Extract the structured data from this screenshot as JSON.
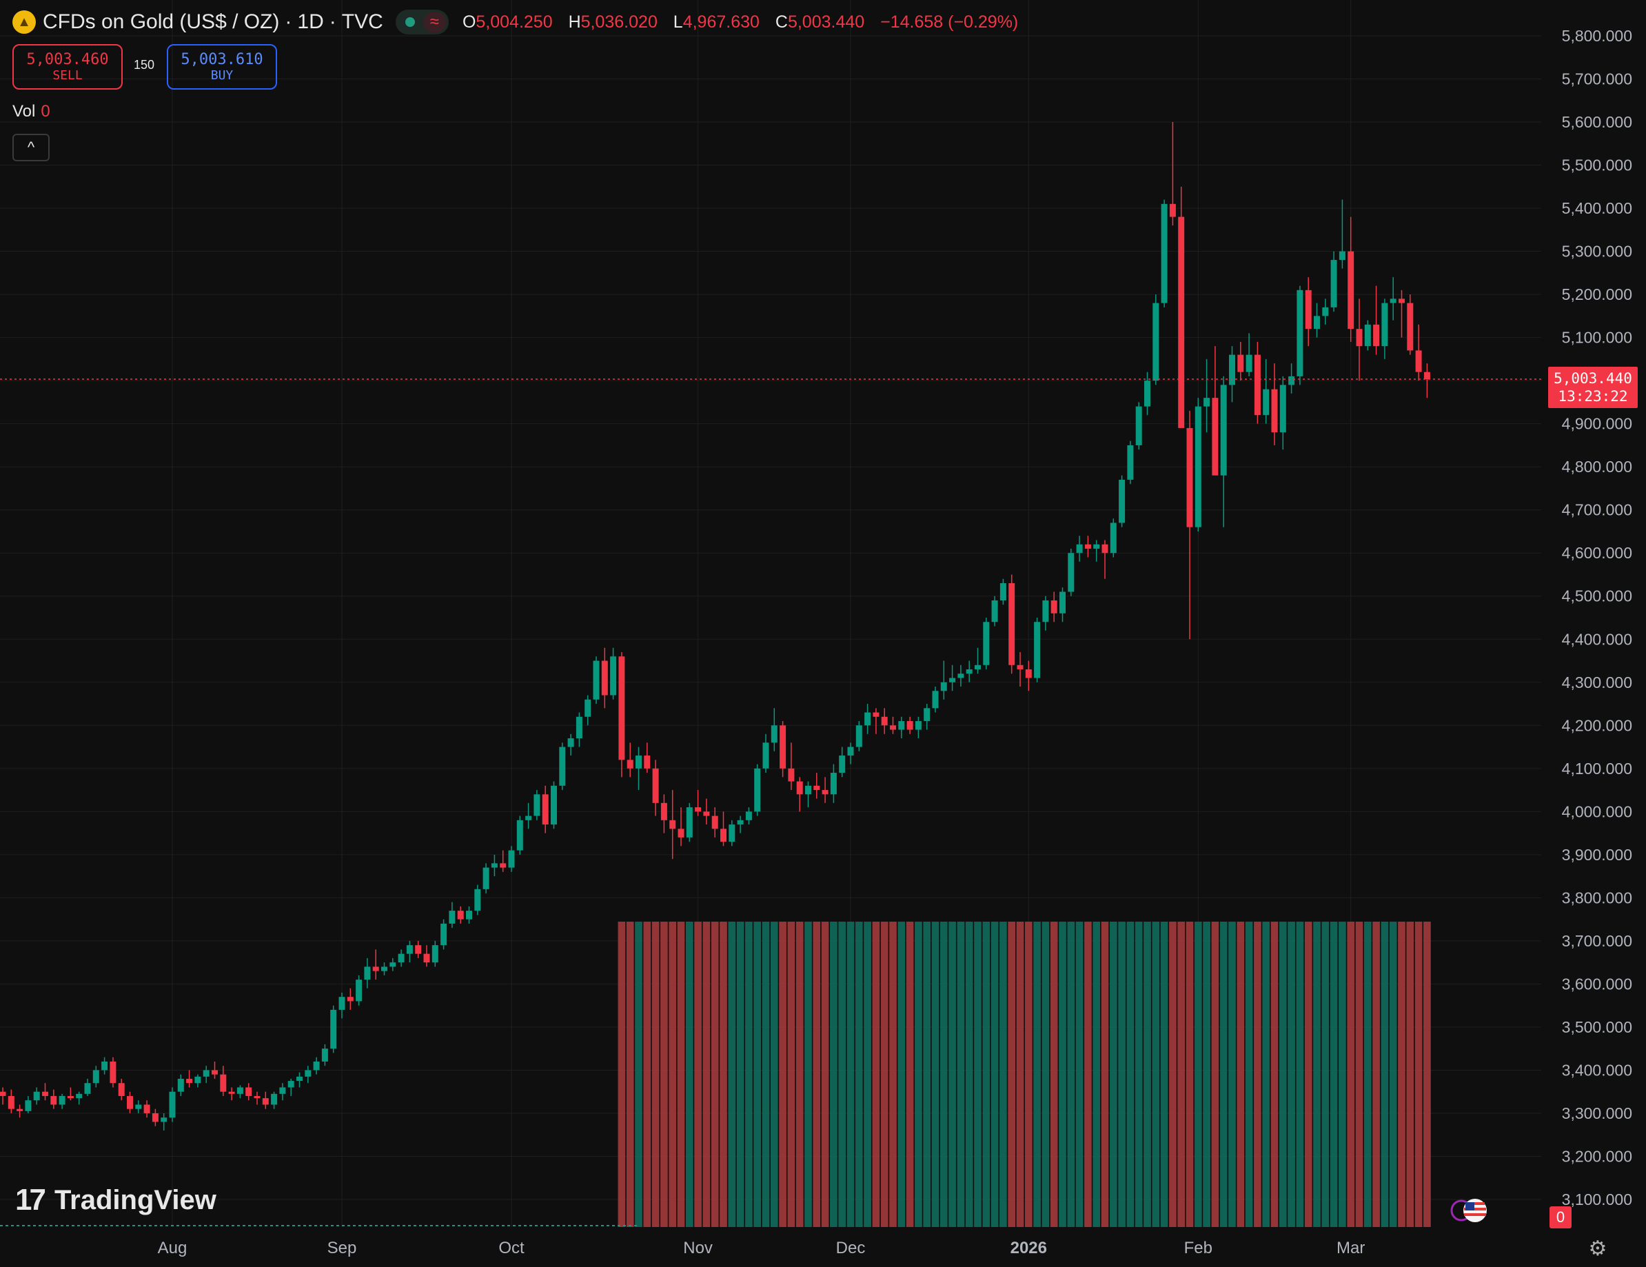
{
  "header": {
    "title": "CFDs on Gold (US$ / OZ)",
    "interval": "1D",
    "exchange": "TVC",
    "separator": "·",
    "logo_icon": "gold-coin-icon",
    "status_wave": "≈",
    "ohlc": {
      "o_label": "O",
      "o_value": "5,004.250",
      "h_label": "H",
      "h_value": "5,036.020",
      "l_label": "L",
      "l_value": "4,967.630",
      "c_label": "C",
      "c_value": "5,003.440",
      "change": "−14.658 (−0.29%)"
    }
  },
  "trade": {
    "sell_price": "5,003.460",
    "sell_label": "SELL",
    "spread": "150",
    "buy_price": "5,003.610",
    "buy_label": "BUY"
  },
  "volume": {
    "label": "Vol",
    "value": "0"
  },
  "controls": {
    "collapse_icon": "^",
    "settings_icon": "gear-icon"
  },
  "branding": {
    "logo_mark": "17",
    "logo_text": "TradingView"
  },
  "price_tag": {
    "price": "5,003.440",
    "countdown": "13:23:22"
  },
  "badge_zero": "0",
  "colors": {
    "up": "#089981",
    "down": "#f23645",
    "background": "#0f0f0f",
    "grid": "#1f1f1f",
    "text": "#b2b5be"
  },
  "chart_data": {
    "type": "candlestick",
    "title": "CFDs on Gold (US$ / OZ) · 1D · TVC",
    "ylim": [
      3000,
      5900
    ],
    "y_ticks": [
      "5,800.000",
      "5,700.000",
      "5,600.000",
      "5,500.000",
      "5,400.000",
      "5,300.000",
      "5,200.000",
      "5,100.000",
      "4,900.000",
      "4,800.000",
      "4,700.000",
      "4,600.000",
      "4,500.000",
      "4,400.000",
      "4,300.000",
      "4,200.000",
      "4,100.000",
      "4,000.000",
      "3,900.000",
      "3,800.000",
      "3,700.000",
      "3,600.000",
      "3,500.000",
      "3,400.000",
      "3,300.000",
      "3,200.000",
      "3,100.000"
    ],
    "y_tick_values": [
      5800,
      5700,
      5600,
      5500,
      5400,
      5300,
      5200,
      5100,
      4900,
      4800,
      4700,
      4600,
      4500,
      4400,
      4300,
      4200,
      4100,
      4000,
      3900,
      3800,
      3700,
      3600,
      3500,
      3400,
      3300,
      3200,
      3100
    ],
    "x_labels": [
      {
        "label": "Aug",
        "index": 20
      },
      {
        "label": "Sep",
        "index": 40
      },
      {
        "label": "Oct",
        "index": 60
      },
      {
        "label": "Nov",
        "index": 82
      },
      {
        "label": "Dec",
        "index": 100
      },
      {
        "label": "2026",
        "index": 121
      },
      {
        "label": "Feb",
        "index": 141
      },
      {
        "label": "Mar",
        "index": 159
      }
    ],
    "last_price": 5003.44,
    "volume_bars_start_index": 73,
    "candles": [
      [
        3350,
        3360,
        3320,
        3340
      ],
      [
        3340,
        3355,
        3300,
        3310
      ],
      [
        3310,
        3320,
        3290,
        3305
      ],
      [
        3305,
        3340,
        3300,
        3330
      ],
      [
        3330,
        3360,
        3320,
        3350
      ],
      [
        3350,
        3370,
        3330,
        3340
      ],
      [
        3340,
        3355,
        3310,
        3320
      ],
      [
        3320,
        3345,
        3310,
        3340
      ],
      [
        3340,
        3360,
        3330,
        3335
      ],
      [
        3335,
        3350,
        3320,
        3345
      ],
      [
        3345,
        3380,
        3340,
        3370
      ],
      [
        3370,
        3410,
        3360,
        3400
      ],
      [
        3400,
        3430,
        3390,
        3420
      ],
      [
        3420,
        3430,
        3360,
        3370
      ],
      [
        3370,
        3380,
        3330,
        3340
      ],
      [
        3340,
        3350,
        3300,
        3310
      ],
      [
        3310,
        3330,
        3300,
        3320
      ],
      [
        3320,
        3330,
        3290,
        3300
      ],
      [
        3300,
        3310,
        3270,
        3280
      ],
      [
        3280,
        3300,
        3260,
        3290
      ],
      [
        3290,
        3360,
        3280,
        3350
      ],
      [
        3350,
        3390,
        3340,
        3380
      ],
      [
        3380,
        3400,
        3360,
        3370
      ],
      [
        3370,
        3390,
        3360,
        3385
      ],
      [
        3385,
        3410,
        3370,
        3400
      ],
      [
        3400,
        3420,
        3380,
        3390
      ],
      [
        3390,
        3410,
        3340,
        3350
      ],
      [
        3350,
        3360,
        3330,
        3345
      ],
      [
        3345,
        3365,
        3335,
        3360
      ],
      [
        3360,
        3370,
        3330,
        3340
      ],
      [
        3340,
        3350,
        3320,
        3335
      ],
      [
        3335,
        3350,
        3310,
        3320
      ],
      [
        3320,
        3350,
        3310,
        3345
      ],
      [
        3345,
        3370,
        3330,
        3360
      ],
      [
        3360,
        3380,
        3340,
        3375
      ],
      [
        3375,
        3395,
        3360,
        3385
      ],
      [
        3385,
        3410,
        3370,
        3400
      ],
      [
        3400,
        3430,
        3390,
        3420
      ],
      [
        3420,
        3460,
        3410,
        3450
      ],
      [
        3450,
        3550,
        3440,
        3540
      ],
      [
        3540,
        3580,
        3520,
        3570
      ],
      [
        3570,
        3590,
        3540,
        3560
      ],
      [
        3560,
        3620,
        3550,
        3610
      ],
      [
        3610,
        3660,
        3590,
        3640
      ],
      [
        3640,
        3680,
        3610,
        3630
      ],
      [
        3630,
        3650,
        3620,
        3640
      ],
      [
        3640,
        3660,
        3630,
        3650
      ],
      [
        3650,
        3680,
        3640,
        3670
      ],
      [
        3670,
        3700,
        3650,
        3690
      ],
      [
        3690,
        3700,
        3660,
        3670
      ],
      [
        3670,
        3690,
        3640,
        3650
      ],
      [
        3650,
        3700,
        3640,
        3690
      ],
      [
        3690,
        3750,
        3680,
        3740
      ],
      [
        3740,
        3790,
        3730,
        3770
      ],
      [
        3770,
        3780,
        3740,
        3750
      ],
      [
        3750,
        3780,
        3740,
        3770
      ],
      [
        3770,
        3830,
        3760,
        3820
      ],
      [
        3820,
        3880,
        3810,
        3870
      ],
      [
        3870,
        3900,
        3850,
        3880
      ],
      [
        3880,
        3910,
        3860,
        3870
      ],
      [
        3870,
        3920,
        3860,
        3910
      ],
      [
        3910,
        3990,
        3900,
        3980
      ],
      [
        3980,
        4020,
        3960,
        3990
      ],
      [
        3990,
        4050,
        3980,
        4040
      ],
      [
        4040,
        4060,
        3950,
        3970
      ],
      [
        3970,
        4070,
        3960,
        4060
      ],
      [
        4060,
        4160,
        4050,
        4150
      ],
      [
        4150,
        4180,
        4130,
        4170
      ],
      [
        4170,
        4230,
        4150,
        4220
      ],
      [
        4220,
        4270,
        4200,
        4260
      ],
      [
        4260,
        4360,
        4250,
        4350
      ],
      [
        4350,
        4380,
        4240,
        4270
      ],
      [
        4270,
        4380,
        4260,
        4360
      ],
      [
        4360,
        4370,
        4080,
        4120
      ],
      [
        4120,
        4160,
        4080,
        4100
      ],
      [
        4100,
        4150,
        4050,
        4130
      ],
      [
        4130,
        4160,
        4090,
        4100
      ],
      [
        4100,
        4120,
        3990,
        4020
      ],
      [
        4020,
        4040,
        3950,
        3980
      ],
      [
        3980,
        4050,
        3890,
        3960
      ],
      [
        3960,
        4010,
        3920,
        3940
      ],
      [
        3940,
        4020,
        3930,
        4010
      ],
      [
        4010,
        4050,
        3990,
        4000
      ],
      [
        4000,
        4030,
        3970,
        3990
      ],
      [
        3990,
        4010,
        3940,
        3960
      ],
      [
        3960,
        4000,
        3920,
        3930
      ],
      [
        3930,
        3980,
        3920,
        3970
      ],
      [
        3970,
        3990,
        3950,
        3980
      ],
      [
        3980,
        4010,
        3970,
        4000
      ],
      [
        4000,
        4110,
        3990,
        4100
      ],
      [
        4100,
        4180,
        4090,
        4160
      ],
      [
        4160,
        4240,
        4140,
        4200
      ],
      [
        4200,
        4210,
        4080,
        4100
      ],
      [
        4100,
        4160,
        4050,
        4070
      ],
      [
        4070,
        4080,
        4000,
        4040
      ],
      [
        4040,
        4070,
        4010,
        4060
      ],
      [
        4060,
        4090,
        4030,
        4050
      ],
      [
        4050,
        4080,
        4020,
        4040
      ],
      [
        4040,
        4110,
        4020,
        4090
      ],
      [
        4090,
        4150,
        4080,
        4130
      ],
      [
        4130,
        4160,
        4110,
        4150
      ],
      [
        4150,
        4210,
        4140,
        4200
      ],
      [
        4200,
        4250,
        4180,
        4230
      ],
      [
        4230,
        4240,
        4180,
        4220
      ],
      [
        4220,
        4240,
        4180,
        4200
      ],
      [
        4200,
        4220,
        4180,
        4190
      ],
      [
        4190,
        4220,
        4170,
        4210
      ],
      [
        4210,
        4220,
        4180,
        4190
      ],
      [
        4190,
        4220,
        4170,
        4210
      ],
      [
        4210,
        4250,
        4190,
        4240
      ],
      [
        4240,
        4290,
        4230,
        4280
      ],
      [
        4280,
        4350,
        4260,
        4300
      ],
      [
        4300,
        4340,
        4280,
        4310
      ],
      [
        4310,
        4340,
        4290,
        4320
      ],
      [
        4320,
        4350,
        4300,
        4330
      ],
      [
        4330,
        4380,
        4320,
        4340
      ],
      [
        4340,
        4450,
        4330,
        4440
      ],
      [
        4440,
        4500,
        4430,
        4490
      ],
      [
        4490,
        4540,
        4480,
        4530
      ],
      [
        4530,
        4550,
        4320,
        4340
      ],
      [
        4340,
        4370,
        4290,
        4330
      ],
      [
        4330,
        4350,
        4280,
        4310
      ],
      [
        4310,
        4450,
        4300,
        4440
      ],
      [
        4440,
        4500,
        4420,
        4490
      ],
      [
        4490,
        4510,
        4440,
        4460
      ],
      [
        4460,
        4520,
        4440,
        4510
      ],
      [
        4510,
        4610,
        4500,
        4600
      ],
      [
        4600,
        4640,
        4580,
        4620
      ],
      [
        4620,
        4640,
        4590,
        4610
      ],
      [
        4610,
        4630,
        4580,
        4620
      ],
      [
        4620,
        4630,
        4540,
        4600
      ],
      [
        4600,
        4680,
        4590,
        4670
      ],
      [
        4670,
        4780,
        4660,
        4770
      ],
      [
        4770,
        4860,
        4760,
        4850
      ],
      [
        4850,
        4950,
        4840,
        4940
      ],
      [
        4940,
        5020,
        4920,
        5000
      ],
      [
        5000,
        5200,
        4990,
        5180
      ],
      [
        5180,
        5420,
        5170,
        5410
      ],
      [
        5410,
        5600,
        5360,
        5380
      ],
      [
        5380,
        5450,
        4900,
        4890
      ],
      [
        4890,
        4930,
        4400,
        4660
      ],
      [
        4660,
        4960,
        4650,
        4940
      ],
      [
        4940,
        5050,
        4880,
        4960
      ],
      [
        4960,
        5080,
        4800,
        4780
      ],
      [
        4780,
        5010,
        4660,
        4990
      ],
      [
        4990,
        5080,
        4950,
        5060
      ],
      [
        5060,
        5090,
        5000,
        5020
      ],
      [
        5020,
        5110,
        5010,
        5060
      ],
      [
        5060,
        5090,
        4900,
        4920
      ],
      [
        4920,
        5050,
        4900,
        4980
      ],
      [
        4980,
        5040,
        4850,
        4880
      ],
      [
        4880,
        5010,
        4840,
        4990
      ],
      [
        4990,
        5040,
        4970,
        5010
      ],
      [
        5010,
        5220,
        4990,
        5210
      ],
      [
        5210,
        5240,
        5080,
        5120
      ],
      [
        5120,
        5180,
        5100,
        5150
      ],
      [
        5150,
        5190,
        5130,
        5170
      ],
      [
        5170,
        5300,
        5160,
        5280
      ],
      [
        5280,
        5420,
        5260,
        5300
      ],
      [
        5300,
        5380,
        5090,
        5120
      ],
      [
        5120,
        5190,
        5000,
        5080
      ],
      [
        5080,
        5140,
        5070,
        5130
      ],
      [
        5130,
        5220,
        5060,
        5080
      ],
      [
        5080,
        5190,
        5050,
        5180
      ],
      [
        5180,
        5240,
        5140,
        5190
      ],
      [
        5190,
        5210,
        5100,
        5180
      ],
      [
        5180,
        5200,
        5060,
        5070
      ],
      [
        5070,
        5130,
        5000,
        5020
      ],
      [
        5020,
        5040,
        4960,
        5003
      ]
    ]
  }
}
